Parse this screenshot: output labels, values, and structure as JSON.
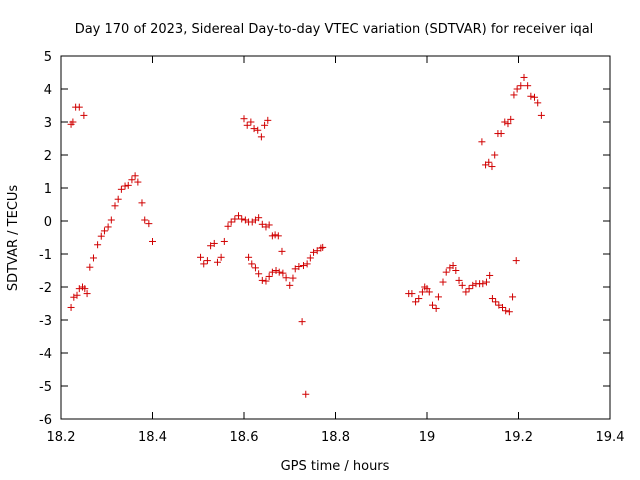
{
  "chart_data": {
    "type": "scatter",
    "title": "Day 170 of 2023, Sidereal Day-to-day VTEC variation (SDTVAR) for receiver iqal",
    "xlabel": "GPS time / hours",
    "ylabel": "SDTVAR / TECUs",
    "xlim": [
      18.2,
      19.4
    ],
    "ylim": [
      -6,
      5
    ],
    "xticks": [
      18.2,
      18.4,
      18.6,
      18.8,
      19,
      19.2,
      19.4
    ],
    "xtick_labels": [
      "18.2",
      "18.4",
      "18.6",
      "18.8",
      "19",
      "19.2",
      "19.4"
    ],
    "yticks": [
      -6,
      -5,
      -4,
      -3,
      -2,
      -1,
      0,
      1,
      2,
      3,
      4,
      5
    ],
    "ytick_labels": [
      "-6",
      "-5",
      "-4",
      "-3",
      "-2",
      "-1",
      "0",
      "1",
      "2",
      "3",
      "4",
      "5"
    ],
    "grid": false,
    "marker": "plus",
    "color": "#d00000",
    "series": [
      {
        "name": "SDTVAR",
        "points": [
          [
            18.222,
            2.93
          ],
          [
            18.226,
            3.0
          ],
          [
            18.232,
            3.45
          ],
          [
            18.24,
            3.45
          ],
          [
            18.25,
            3.2
          ],
          [
            18.222,
            -2.62
          ],
          [
            18.228,
            -2.31
          ],
          [
            18.235,
            -2.25
          ],
          [
            18.24,
            -2.05
          ],
          [
            18.247,
            -2.0
          ],
          [
            18.252,
            -2.05
          ],
          [
            18.257,
            -2.2
          ],
          [
            18.263,
            -1.4
          ],
          [
            18.271,
            -1.12
          ],
          [
            18.28,
            -0.72
          ],
          [
            18.288,
            -0.46
          ],
          [
            18.295,
            -0.3
          ],
          [
            18.303,
            -0.18
          ],
          [
            18.31,
            0.03
          ],
          [
            18.318,
            0.46
          ],
          [
            18.325,
            0.66
          ],
          [
            18.332,
            0.96
          ],
          [
            18.34,
            1.06
          ],
          [
            18.347,
            1.08
          ],
          [
            18.355,
            1.25
          ],
          [
            18.362,
            1.37
          ],
          [
            18.368,
            1.18
          ],
          [
            18.377,
            0.55
          ],
          [
            18.383,
            0.03
          ],
          [
            18.392,
            -0.08
          ],
          [
            18.4,
            -0.62
          ],
          [
            18.505,
            -1.1
          ],
          [
            18.512,
            -1.3
          ],
          [
            18.52,
            -1.2
          ],
          [
            18.527,
            -0.75
          ],
          [
            18.535,
            -0.68
          ],
          [
            18.542,
            -1.25
          ],
          [
            18.55,
            -1.1
          ],
          [
            18.557,
            -0.62
          ],
          [
            18.565,
            -0.16
          ],
          [
            18.572,
            -0.03
          ],
          [
            18.58,
            0.06
          ],
          [
            18.588,
            0.16
          ],
          [
            18.595,
            0.06
          ],
          [
            18.603,
            0.03
          ],
          [
            18.61,
            -0.03
          ],
          [
            18.618,
            -0.03
          ],
          [
            18.625,
            0.03
          ],
          [
            18.632,
            0.1
          ],
          [
            18.64,
            -0.1
          ],
          [
            18.648,
            -0.18
          ],
          [
            18.655,
            -0.12
          ],
          [
            18.662,
            -0.45
          ],
          [
            18.668,
            -0.42
          ],
          [
            18.675,
            -0.45
          ],
          [
            18.683,
            -0.92
          ],
          [
            18.61,
            -1.1
          ],
          [
            18.617,
            -1.3
          ],
          [
            18.625,
            -1.42
          ],
          [
            18.632,
            -1.6
          ],
          [
            18.64,
            -1.8
          ],
          [
            18.648,
            -1.82
          ],
          [
            18.655,
            -1.68
          ],
          [
            18.662,
            -1.55
          ],
          [
            18.67,
            -1.5
          ],
          [
            18.677,
            -1.55
          ],
          [
            18.685,
            -1.58
          ],
          [
            18.692,
            -1.72
          ],
          [
            18.7,
            -1.95
          ],
          [
            18.707,
            -1.73
          ],
          [
            18.712,
            -1.45
          ],
          [
            18.72,
            -1.38
          ],
          [
            18.73,
            -1.35
          ],
          [
            18.738,
            -1.3
          ],
          [
            18.745,
            -1.12
          ],
          [
            18.752,
            -0.95
          ],
          [
            18.76,
            -0.9
          ],
          [
            18.768,
            -0.82
          ],
          [
            18.772,
            -0.8
          ],
          [
            18.727,
            -3.05
          ],
          [
            18.735,
            -5.25
          ],
          [
            18.6,
            3.1
          ],
          [
            18.607,
            2.9
          ],
          [
            18.615,
            3.0
          ],
          [
            18.622,
            2.8
          ],
          [
            18.63,
            2.75
          ],
          [
            18.638,
            2.55
          ],
          [
            18.645,
            2.9
          ],
          [
            18.652,
            3.05
          ],
          [
            18.96,
            -2.2
          ],
          [
            18.967,
            -2.2
          ],
          [
            18.975,
            -2.45
          ],
          [
            18.982,
            -2.35
          ],
          [
            18.99,
            -2.15
          ],
          [
            18.995,
            -2.0
          ],
          [
            19.0,
            -2.05
          ],
          [
            19.005,
            -2.15
          ],
          [
            19.012,
            -2.55
          ],
          [
            19.02,
            -2.65
          ],
          [
            19.025,
            -2.3
          ],
          [
            19.035,
            -1.85
          ],
          [
            19.042,
            -1.55
          ],
          [
            19.05,
            -1.42
          ],
          [
            19.057,
            -1.35
          ],
          [
            19.063,
            -1.5
          ],
          [
            19.07,
            -1.8
          ],
          [
            19.077,
            -1.95
          ],
          [
            19.085,
            -2.15
          ],
          [
            19.092,
            -2.05
          ],
          [
            19.1,
            -1.95
          ],
          [
            19.107,
            -1.9
          ],
          [
            19.115,
            -1.9
          ],
          [
            19.122,
            -1.9
          ],
          [
            19.13,
            -1.85
          ],
          [
            19.137,
            -1.65
          ],
          [
            19.143,
            -2.35
          ],
          [
            19.15,
            -2.45
          ],
          [
            19.157,
            -2.55
          ],
          [
            19.165,
            -2.62
          ],
          [
            19.172,
            -2.72
          ],
          [
            19.18,
            -2.75
          ],
          [
            19.187,
            -2.3
          ],
          [
            19.195,
            -1.2
          ],
          [
            19.12,
            2.4
          ],
          [
            19.128,
            1.7
          ],
          [
            19.135,
            1.78
          ],
          [
            19.142,
            1.65
          ],
          [
            19.148,
            2.0
          ],
          [
            19.155,
            2.65
          ],
          [
            19.162,
            2.65
          ],
          [
            19.17,
            3.0
          ],
          [
            19.177,
            2.95
          ],
          [
            19.183,
            3.08
          ],
          [
            19.19,
            3.82
          ],
          [
            19.197,
            4.0
          ],
          [
            19.205,
            4.1
          ],
          [
            19.212,
            4.35
          ],
          [
            19.22,
            4.1
          ],
          [
            19.227,
            3.78
          ],
          [
            19.235,
            3.75
          ],
          [
            19.242,
            3.58
          ],
          [
            19.25,
            3.2
          ]
        ]
      }
    ]
  }
}
